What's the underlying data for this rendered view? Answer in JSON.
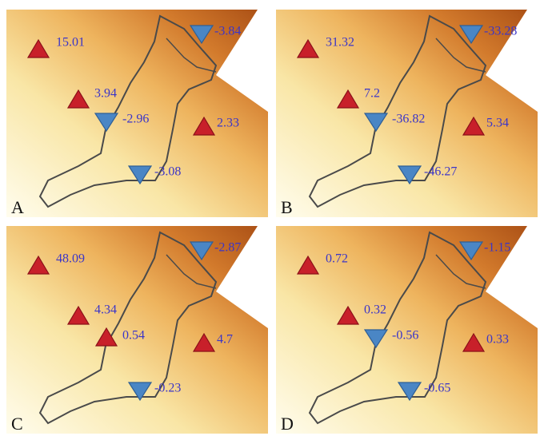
{
  "panels": [
    {
      "label": "A",
      "markers": [
        "15.01",
        "3.94",
        "-2.96",
        "2.33",
        "-3.84",
        "-3.08"
      ]
    },
    {
      "label": "B",
      "markers": [
        "31.32",
        "7.2",
        "-36.82",
        "5.34",
        "-33.28",
        "-46.27"
      ]
    },
    {
      "label": "C",
      "markers": [
        "48.09",
        "4.34",
        "0.54",
        "4.7",
        "-2.87",
        "-0.23"
      ]
    },
    {
      "label": "D",
      "markers": [
        "0.72",
        "0.32",
        "-0.56",
        "0.33",
        "-1.15",
        "-0.65"
      ]
    }
  ]
}
